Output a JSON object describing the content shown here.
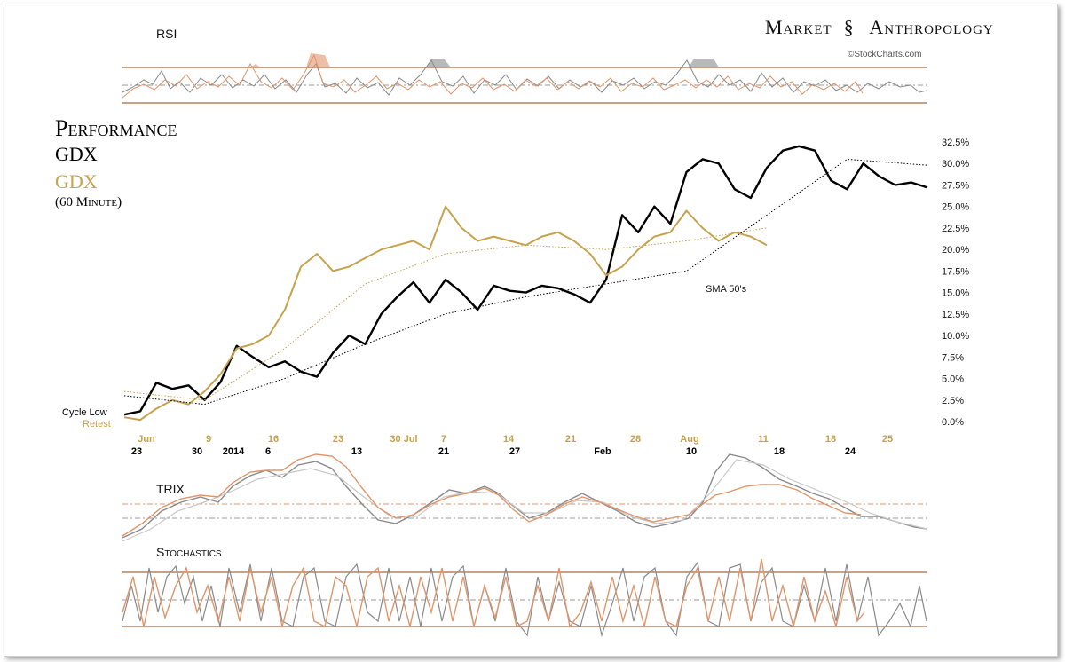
{
  "brand": {
    "left": "Market",
    "right": "Anthropology",
    "credit": "©StockCharts.com"
  },
  "titles": {
    "main": "Performance",
    "series1": "GDX",
    "series2": "GDX",
    "timeframe": "(60 Minute)"
  },
  "panels": {
    "rsi": "RSI",
    "trix": "TRIX",
    "stochastics": "Stochastics"
  },
  "annotations": {
    "cycle_low": "Cycle Low",
    "retest": "Retest",
    "sma": "SMA 50's"
  },
  "colors": {
    "black": "#000000",
    "gold": "#c6a24d",
    "orange": "#e0956a",
    "grey": "#8a8a8a",
    "band": "#b8825e"
  },
  "chart_data": {
    "type": "line",
    "title": "Performance",
    "ylim": [
      0,
      32.5
    ],
    "y_ticks": [
      "32.5%",
      "30.0%",
      "27.5%",
      "25.0%",
      "22.5%",
      "20.0%",
      "17.5%",
      "15.0%",
      "12.5%",
      "10.0%",
      "7.5%",
      "5.0%",
      "2.5%",
      "0.0%"
    ],
    "x_ticks_top": [
      "Jun",
      "9",
      "16",
      "23",
      "30 Jul",
      "7",
      "14",
      "21",
      "28",
      "Aug",
      "11",
      "18",
      "25"
    ],
    "x_ticks_bottom": [
      "23",
      "30",
      "2014",
      "6",
      "13",
      "21",
      "27",
      "Feb",
      "10",
      "18",
      "24"
    ],
    "series": [
      {
        "name": "GDX",
        "color": "black",
        "x": [
          0,
          2,
          4,
          6,
          8,
          10,
          12,
          14,
          16,
          18,
          20,
          22,
          24,
          26,
          28,
          30,
          32,
          34,
          36,
          38,
          40,
          42,
          44,
          46,
          48,
          50,
          52,
          54,
          56,
          58,
          60,
          62,
          64,
          66,
          68,
          70,
          72,
          74,
          76,
          78,
          80,
          82,
          84,
          86,
          88,
          90,
          92,
          94,
          96,
          98,
          100
        ],
        "y": [
          0.8,
          1.2,
          4.5,
          3.8,
          4.2,
          2.5,
          4.6,
          8.8,
          7.5,
          6.3,
          7.0,
          5.8,
          5.2,
          8.0,
          10.0,
          9.0,
          12.5,
          14.5,
          16.2,
          13.8,
          16.5,
          15.0,
          13.0,
          15.8,
          15.2,
          15.0,
          15.8,
          15.5,
          14.8,
          13.8,
          16.5,
          24.0,
          22.0,
          25.0,
          23.0,
          29.0,
          30.5,
          30.0,
          27.0,
          26.0,
          29.5,
          31.5,
          32.0,
          31.5,
          28.0,
          27.0,
          30.0,
          28.5,
          27.5,
          27.8,
          27.2
        ]
      },
      {
        "name": "GDX",
        "color": "gold",
        "x": [
          0,
          2,
          4,
          6,
          8,
          10,
          12,
          14,
          16,
          18,
          20,
          22,
          24,
          26,
          28,
          30,
          32,
          34,
          36,
          38,
          40,
          42,
          44,
          46,
          48,
          50,
          52,
          54,
          56,
          58,
          60,
          62,
          64,
          66,
          68,
          70,
          72,
          74,
          76,
          78,
          80
        ],
        "y": [
          0.5,
          0.2,
          1.5,
          2.5,
          2.0,
          3.5,
          5.5,
          8.5,
          9.0,
          10.0,
          13.0,
          18.0,
          19.5,
          17.5,
          18.0,
          19.0,
          20.0,
          20.5,
          21.0,
          20.0,
          25.0,
          22.5,
          21.0,
          21.5,
          21.0,
          20.5,
          21.5,
          22.0,
          21.0,
          19.5,
          17.0,
          18.0,
          20.0,
          21.5,
          22.0,
          24.5,
          22.5,
          21.0,
          22.0,
          21.5,
          20.5
        ]
      },
      {
        "name": "SMA 50's",
        "color": "black",
        "style": "dotted",
        "x": [
          0,
          10,
          20,
          30,
          40,
          50,
          60,
          70,
          80,
          90,
          100
        ],
        "y": [
          3.0,
          2.0,
          5.0,
          9.0,
          12.5,
          14.5,
          16.0,
          17.5,
          24.0,
          30.5,
          29.8
        ]
      },
      {
        "name": "SMA 50's",
        "color": "gold",
        "style": "dotted",
        "x": [
          0,
          10,
          20,
          30,
          40,
          50,
          60,
          70,
          80
        ],
        "y": [
          3.5,
          2.5,
          8.5,
          16.0,
          19.5,
          20.5,
          20.0,
          21.0,
          22.5
        ]
      }
    ]
  }
}
